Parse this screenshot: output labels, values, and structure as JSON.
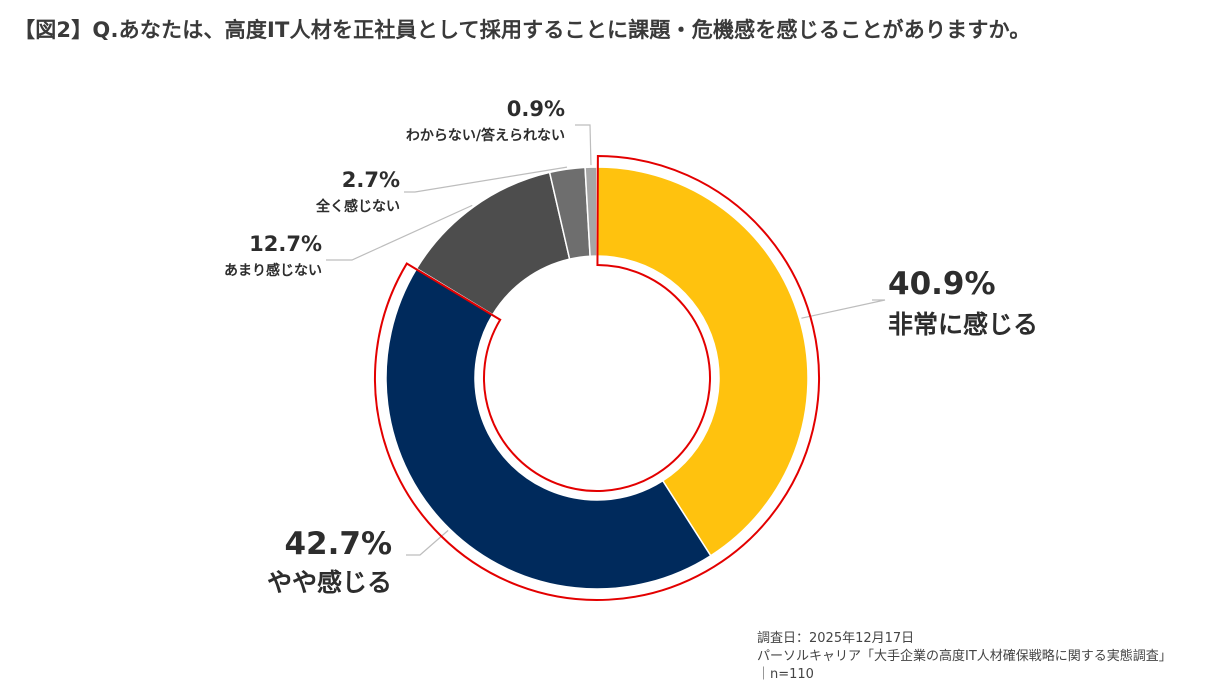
{
  "title": "【図2】Q.あなたは、高度IT人材を正社員として採用することに課題・危機感を感じることがありますか。",
  "chart_data": {
    "type": "donut",
    "title": "【図2】Q.あなたは、高度IT人材を正社員として採用することに課題・危機感を感じることがありますか。",
    "slices": [
      {
        "label": "非常に感じる",
        "value": 40.9,
        "value_label": "40.9%",
        "color": "#FFC20E"
      },
      {
        "label": "やや感じる",
        "value": 42.7,
        "value_label": "42.7%",
        "color": "#002A5C"
      },
      {
        "label": "あまり感じない",
        "value": 12.7,
        "value_label": "12.7%",
        "color": "#4D4D4D"
      },
      {
        "label": "全く感じない",
        "value": 2.7,
        "value_label": "2.7%",
        "color": "#6E6E6E"
      },
      {
        "label": "わからない/答えられない",
        "value": 0.9,
        "value_label": "0.9%",
        "color": "#A6A6A6"
      }
    ],
    "highlight_color": "#E30000"
  },
  "footer": {
    "date": "調査日：2025年12月17日",
    "source": "パーソルキャリア「大手企業の高度IT人材確保戦略に関する実態調査」",
    "n": "｜n=110"
  }
}
